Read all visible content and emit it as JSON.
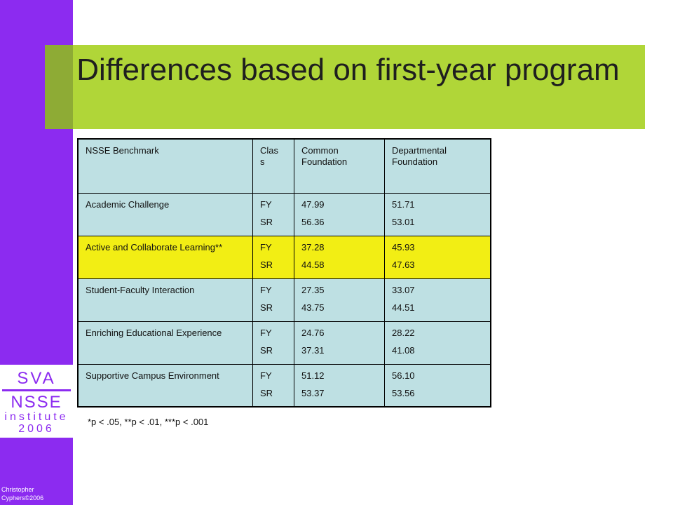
{
  "slide": {
    "title": "Differences based on first-year program"
  },
  "logo": {
    "line1": "SVA",
    "line2": "NSSE",
    "line3": "institute",
    "line4": "2006"
  },
  "credit": {
    "line1": "Christopher",
    "line2": "Cyphers©2006"
  },
  "table": {
    "headers": [
      "NSSE Benchmark",
      "Clas s",
      "Common Foundation",
      "Departmental Foundation"
    ],
    "rows": [
      {
        "benchmark": "Academic Challenge",
        "class1": "FY",
        "class2": "SR",
        "common1": "47.99",
        "common2": "56.36",
        "dept1": "51.71",
        "dept2": "53.01"
      },
      {
        "benchmark": "Active and Collaborate Learning**",
        "class1": "FY",
        "class2": "SR",
        "common1": "37.28",
        "common2": "44.58",
        "dept1": "45.93",
        "dept2": "47.63"
      },
      {
        "benchmark": "Student-Faculty Interaction",
        "class1": "FY",
        "class2": "SR",
        "common1": "27.35",
        "common2": "43.75",
        "dept1": "33.07",
        "dept2": "44.51"
      },
      {
        "benchmark": "Enriching Educational Experience",
        "class1": "FY",
        "class2": "SR",
        "common1": "24.76",
        "common2": "37.31",
        "dept1": "28.22",
        "dept2": "41.08"
      },
      {
        "benchmark": "Supportive Campus Environment",
        "class1": "FY",
        "class2": "SR",
        "common1": "51.12",
        "common2": "53.37",
        "dept1": "56.10",
        "dept2": "53.56"
      }
    ]
  },
  "footnote": {
    "text": "*p < .05, **p < .01, ***p < .001"
  },
  "colors": {
    "sidebar": "#8c2bf0",
    "title_band": "#b0d638",
    "cell": "#bee0e3",
    "highlight": "#f2ee14"
  }
}
